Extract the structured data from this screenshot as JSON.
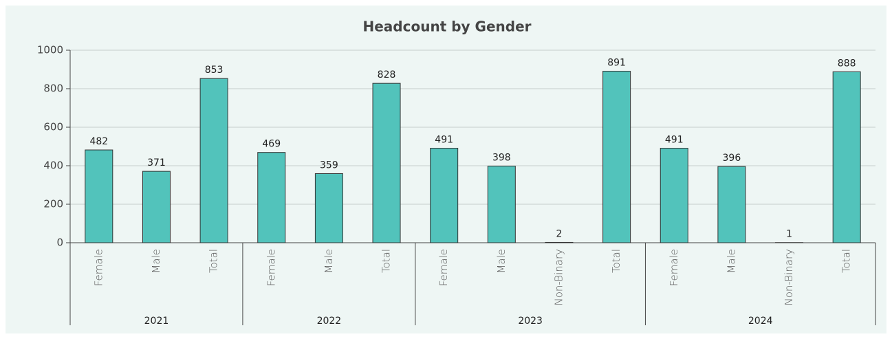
{
  "chart_data": {
    "type": "bar",
    "title": "Headcount by Gender",
    "groups": [
      {
        "name": "2021",
        "categories": [
          "Female",
          "Male",
          "Total"
        ],
        "values": [
          482,
          371,
          853
        ]
      },
      {
        "name": "2022",
        "categories": [
          "Female",
          "Male",
          "Total"
        ],
        "values": [
          469,
          359,
          828
        ]
      },
      {
        "name": "2023",
        "categories": [
          "Female",
          "Male",
          "Non-Binary",
          "Total"
        ],
        "values": [
          491,
          398,
          2,
          891
        ]
      },
      {
        "name": "2024",
        "categories": [
          "Female",
          "Male",
          "Non-Binary",
          "Total"
        ],
        "values": [
          491,
          396,
          1,
          888
        ]
      }
    ],
    "color": "#52c3bb",
    "ylim": [
      0,
      1000
    ],
    "yticks": [
      0,
      200,
      400,
      600,
      800,
      1000
    ],
    "grid": true
  }
}
